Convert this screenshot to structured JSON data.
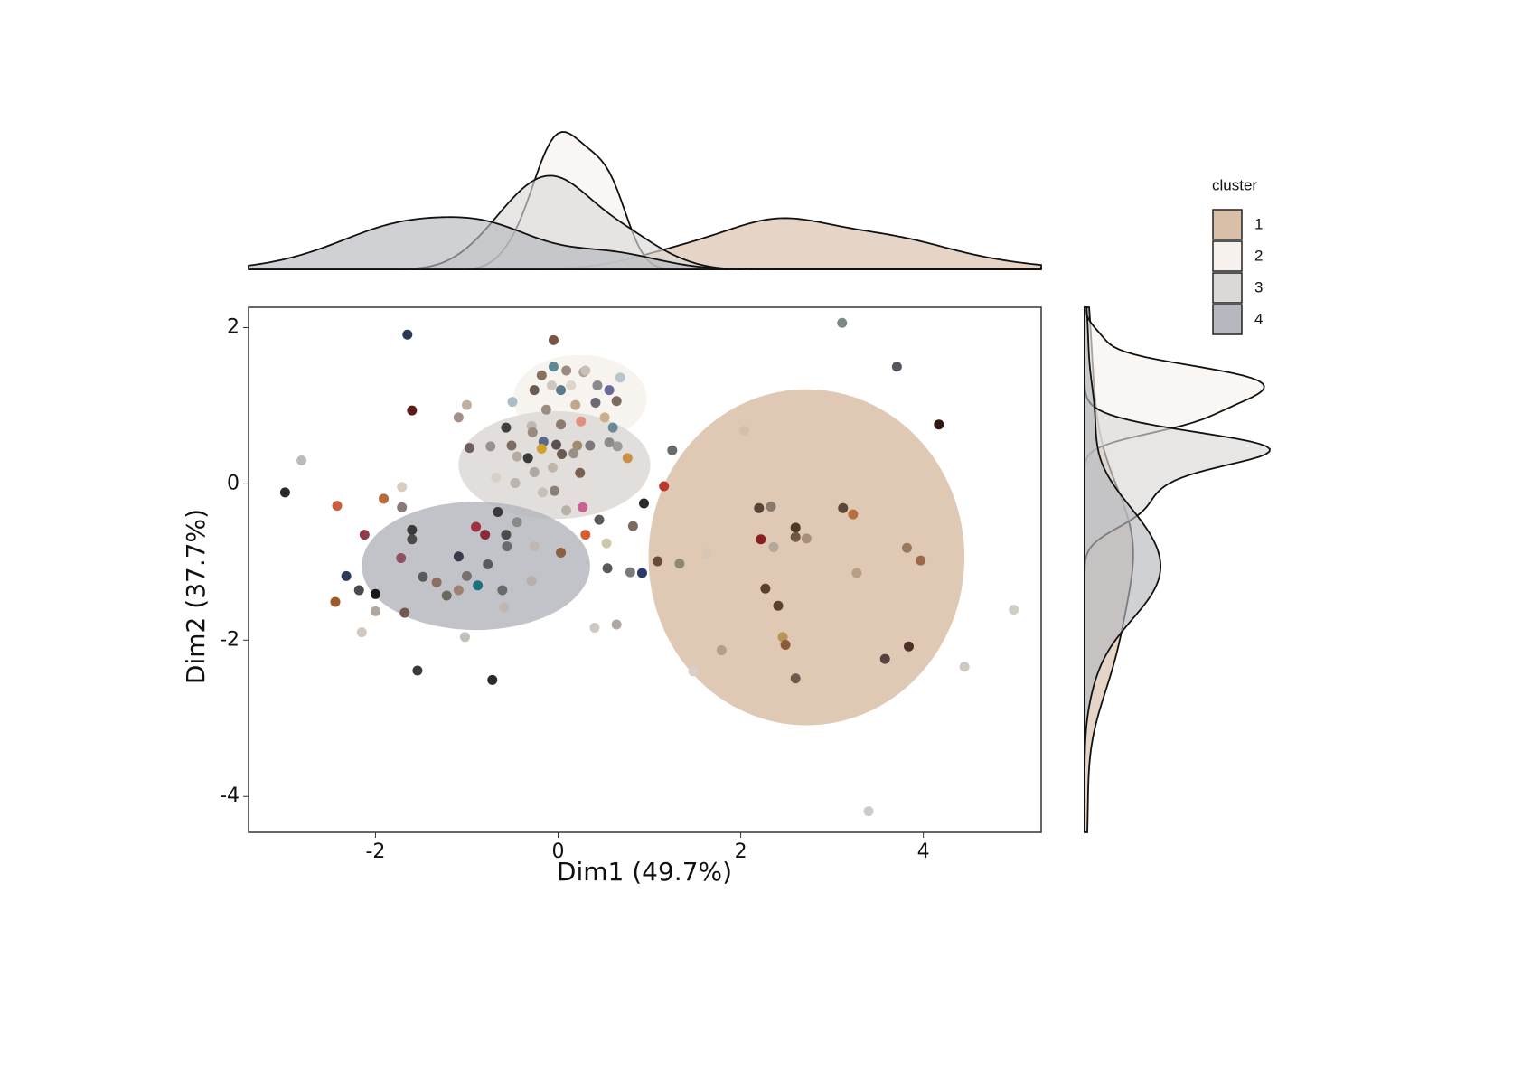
{
  "chart_data": {
    "type": "scatter",
    "x_label": "Dim1 (49.7%)",
    "y_label": "Dim2 (37.7%)",
    "legend_title": "cluster",
    "legend_position": "top-right",
    "grid": false,
    "xlim": [
      -3.39,
      5.29
    ],
    "ylim": [
      -4.46,
      2.26
    ],
    "xticks": [
      -2,
      0,
      2,
      4
    ],
    "yticks": [
      2,
      0,
      -2,
      -4
    ],
    "series": [
      {
        "name": "1",
        "color": "#d9bfa8",
        "ellipse": {
          "center": [
            2.72,
            -0.94
          ],
          "radius": [
            1.73,
            2.15
          ]
        },
        "x": [
          3.11,
          3.71,
          4.17,
          2.04,
          2.2,
          2.33,
          3.12,
          3.23,
          2.6,
          2.6,
          2.72,
          2.22,
          2.36,
          3.82,
          3.97,
          1.63,
          1.33,
          1.09,
          3.27,
          2.27,
          2.41,
          2.46,
          2.49,
          1.79,
          3.84,
          3.58,
          1.48,
          2.6,
          4.45,
          4.99,
          3.4,
          1.16
        ],
        "y": [
          2.06,
          1.5,
          0.76,
          0.68,
          -0.31,
          -0.29,
          -0.31,
          -0.39,
          -0.56,
          -0.68,
          -0.7,
          -0.71,
          -0.81,
          -0.82,
          -0.98,
          -0.89,
          -1.02,
          -0.99,
          -1.14,
          -1.34,
          -1.56,
          -1.96,
          -2.06,
          -2.13,
          -2.08,
          -2.24,
          -2.4,
          -2.49,
          -2.34,
          -1.61,
          -4.19,
          -0.03
        ],
        "point_colors": [
          "#7a8a88",
          "#55595f",
          "#2e1a12",
          "#d2bfae",
          "#5a4336",
          "#8b7a6e",
          "#5e4638",
          "#b6703f",
          "#4d3828",
          "#6d5647",
          "#a88e7c",
          "#8a1e1e",
          "#b5a79a",
          "#9a7a5e",
          "#9b6a4a",
          "#d7c5b6",
          "#8c8a70",
          "#6a4a38",
          "#b79f86",
          "#5a3f30",
          "#5a4030",
          "#b89458",
          "#8a5a38",
          "#b59e87",
          "#4a3025",
          "#5a4040",
          "#d8d0c8",
          "#6e5a4e",
          "#cfc9c2",
          "#d0cdc6",
          "#cfcac5",
          "#b8382a"
        ]
      },
      {
        "name": "2",
        "color": "#f6f1ec",
        "ellipse": {
          "center": [
            0.24,
            1.09
          ],
          "radius": [
            0.73,
            0.56
          ]
        },
        "x": [
          -0.05,
          -0.05,
          0.09,
          -0.18,
          0.28,
          0.68,
          -0.5,
          -0.26,
          -0.07,
          0.03,
          0.41,
          0.56,
          0.64,
          0.19,
          -0.13,
          0.03,
          0.25,
          -0.29,
          0.51,
          0.6,
          0.3,
          0.14,
          0.43
        ],
        "y": [
          1.84,
          1.5,
          1.45,
          1.39,
          1.43,
          1.36,
          1.05,
          1.2,
          1.26,
          1.2,
          1.04,
          1.2,
          1.06,
          1.01,
          0.95,
          0.76,
          0.8,
          0.74,
          0.85,
          0.72,
          1.45,
          1.26,
          1.26
        ],
        "point_colors": [
          "#7a5545",
          "#5a8a9a",
          "#9a8a80",
          "#8a7060",
          "#b0a296",
          "#b8c5cc",
          "#a8bfc5",
          "#6a5a50",
          "#d0c8c0",
          "#5a7a8a",
          "#6e6a70",
          "#6a6a9a",
          "#7a6a60",
          "#c0a890",
          "#9c8c82",
          "#8a7a70",
          "#e09080",
          "#c0b8b0",
          "#c8b08a",
          "#6a8a9a",
          "#c8c0b8",
          "#ddd6cd",
          "#8a8a8a"
        ]
      },
      {
        "name": "3",
        "color": "#dcd8d6",
        "ellipse": {
          "center": [
            -0.04,
            0.24
          ],
          "radius": [
            1.05,
            0.69
          ]
        },
        "x": [
          -0.57,
          -0.28,
          -0.97,
          -0.74,
          -0.51,
          -0.16,
          -0.02,
          0.21,
          0.35,
          -0.18,
          0.17,
          0.56,
          0.76,
          0.65,
          -0.45,
          0.04,
          -0.06,
          -0.33,
          -0.68,
          -0.47,
          -0.17,
          -0.04,
          0.24,
          0.27,
          0.45,
          0.94,
          0.82,
          1.25,
          0.09,
          -0.26
        ],
        "y": [
          0.72,
          0.66,
          0.46,
          0.48,
          0.49,
          0.54,
          0.5,
          0.49,
          0.49,
          0.45,
          0.39,
          0.53,
          0.33,
          0.48,
          0.35,
          0.38,
          0.21,
          0.33,
          0.08,
          0.01,
          -0.11,
          -0.09,
          0.14,
          -0.3,
          -0.46,
          -0.25,
          -0.54,
          0.43,
          -0.34,
          0.15
        ],
        "point_colors": [
          "#3f3f3f",
          "#9a8a80",
          "#6e6060",
          "#9a9090",
          "#7a6a60",
          "#5a6a8a",
          "#5a5050",
          "#a08a70",
          "#7a7a7a",
          "#d0a030",
          "#9a9088",
          "#8a8a8a",
          "#c8904a",
          "#9a9a9a",
          "#b5aaa0",
          "#6a5a50",
          "#c0b5aa",
          "#3a3a3a",
          "#d9d0c8",
          "#bcb3ab",
          "#c8c0b8",
          "#8a8078",
          "#7a5e50",
          "#c86090",
          "#5a5a5a",
          "#2a2a2a",
          "#7a6a60",
          "#6a6a6a",
          "#b8b0a8",
          "#b0a8a0"
        ]
      },
      {
        "name": "4",
        "color": "#b6b8bf",
        "ellipse": {
          "center": [
            -0.9,
            -1.05
          ],
          "radius": [
            1.25,
            0.82
          ]
        },
        "x": [
          -1.65,
          -1.6,
          -1.0,
          -1.09,
          -2.81,
          -2.99,
          -2.42,
          -1.91,
          -1.71,
          -1.71,
          -2.12,
          -1.6,
          -1.6,
          -1.72,
          -2.32,
          -2.18,
          -2.0,
          -2.44,
          -2.0,
          -2.15,
          -1.68,
          -1.48,
          -1.33,
          -1.22,
          -1.09,
          -1.0,
          -0.88,
          -0.77,
          -0.66,
          -0.9,
          -0.8,
          -0.56,
          -0.57,
          -1.09,
          -0.61,
          -0.29,
          -0.59,
          -1.02,
          -1.54,
          -0.72,
          0.03,
          0.3,
          0.53,
          0.54,
          0.79,
          0.92,
          0.4,
          0.64,
          -0.26,
          -0.45
        ],
        "y": [
          1.91,
          0.94,
          1.01,
          0.85,
          0.3,
          -0.11,
          -0.28,
          -0.19,
          -0.04,
          -0.3,
          -0.65,
          -0.59,
          -0.71,
          -0.95,
          -1.18,
          -1.36,
          -1.41,
          -1.51,
          -1.63,
          -1.9,
          -1.65,
          -1.19,
          -1.26,
          -1.43,
          -0.93,
          -1.18,
          -1.3,
          -1.03,
          -0.36,
          -0.55,
          -0.65,
          -0.8,
          -0.65,
          -1.36,
          -1.36,
          -1.24,
          -1.58,
          -1.96,
          -2.39,
          -2.51,
          -0.88,
          -0.65,
          -0.76,
          -1.08,
          -1.13,
          -1.14,
          -1.84,
          -1.8,
          -0.8,
          -0.49
        ],
        "point_colors": [
          "#2a3a55",
          "#5a1a1a",
          "#c0b0a0",
          "#a09088",
          "#bebab8",
          "#2a2a2a",
          "#c8603a",
          "#b86a3a",
          "#d8cdc0",
          "#8a7a7a",
          "#903a4a",
          "#3a3a3a",
          "#4a4a4a",
          "#905060",
          "#2a3a5a",
          "#4a4a4a",
          "#1a1a1a",
          "#a05a2a",
          "#b0a8a0",
          "#d0c8c0",
          "#705a50",
          "#5a5a5a",
          "#8a7060",
          "#6a6a5a",
          "#3a3a4a",
          "#7a7070",
          "#207080",
          "#5a5a5a",
          "#3a3a3a",
          "#a03040",
          "#8a2a3a",
          "#6a6a70",
          "#4a4a4a",
          "#a08070",
          "#6a6a6a",
          "#b8b0a8",
          "#c0b8b0",
          "#c0c0b8",
          "#3a3a3a",
          "#2a2a2a",
          "#8a6040",
          "#d86030",
          "#cfc8a8",
          "#5a5a5a",
          "#7a7a7a",
          "#2a3a6a",
          "#d0c8c0",
          "#b0a8a0",
          "#c0b8b0",
          "#8a8a8a"
        ]
      }
    ]
  }
}
